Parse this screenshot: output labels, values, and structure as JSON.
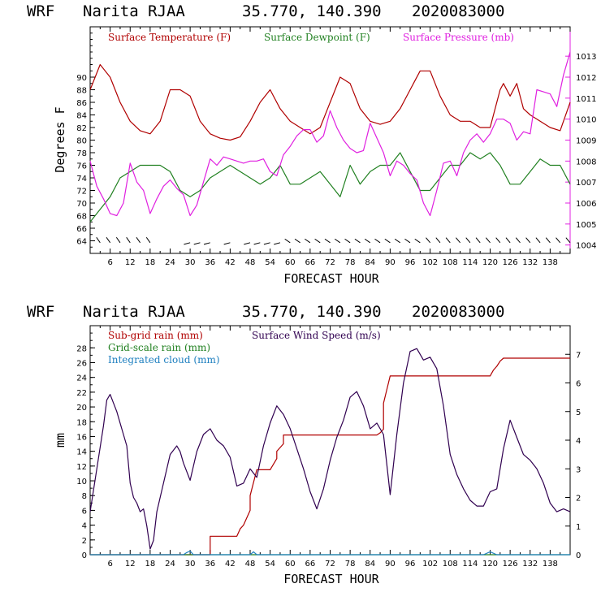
{
  "chart_data": [
    {
      "type": "line",
      "header": {
        "model": "WRF",
        "station": "Narita RJAA",
        "coords": "35.770, 140.390",
        "init": "2020083000"
      },
      "xlabel": "FORECAST HOUR",
      "ylabel": "Degrees F",
      "xlim": [
        0,
        144
      ],
      "ylim": [
        62,
        98
      ],
      "y2lim": [
        1003.6,
        1014.4
      ],
      "x_ticks": [
        "6",
        "12",
        "18",
        "24",
        "30",
        "36",
        "42",
        "48",
        "54",
        "60",
        "66",
        "72",
        "78",
        "84",
        "90",
        "96",
        "102",
        "108",
        "114",
        "120",
        "126",
        "132",
        "138"
      ],
      "y_ticks": [
        "64",
        "66",
        "68",
        "70",
        "72",
        "74",
        "76",
        "78",
        "80",
        "82",
        "84",
        "86",
        "88",
        "90"
      ],
      "y2_ticks": [
        "1004",
        "1005",
        "1006",
        "1007",
        "1008",
        "1009",
        "1010",
        "1011",
        "1012",
        "1013"
      ],
      "series": [
        {
          "name": "Surface Temperature (F)",
          "color": "#b00000",
          "axis": "left",
          "x": [
            0,
            3,
            6,
            9,
            12,
            15,
            18,
            21,
            24,
            27,
            30,
            33,
            36,
            39,
            42,
            45,
            48,
            51,
            54,
            57,
            60,
            63,
            66,
            69,
            72,
            75,
            78,
            81,
            84,
            87,
            90,
            93,
            96,
            99,
            102,
            105,
            108,
            111,
            114,
            117,
            120,
            123,
            124,
            126,
            128,
            130,
            132,
            135,
            138,
            141,
            144
          ],
          "values": [
            88,
            92,
            90,
            86,
            83,
            81.5,
            81,
            83,
            88,
            88,
            87,
            83,
            81,
            80.3,
            80,
            80.5,
            83,
            86,
            88,
            85,
            83,
            82,
            81,
            82,
            86,
            90,
            89,
            85,
            83,
            82.5,
            83,
            85,
            88,
            91,
            91,
            87,
            84,
            83,
            83,
            82,
            82,
            88,
            89,
            87,
            89,
            85,
            84,
            83,
            82,
            81.5,
            86
          ]
        },
        {
          "name": "Surface Dewpoint (F)",
          "color": "#208020",
          "axis": "left",
          "x": [
            0,
            3,
            6,
            9,
            12,
            15,
            18,
            21,
            24,
            27,
            30,
            33,
            36,
            39,
            42,
            45,
            48,
            51,
            54,
            57,
            60,
            63,
            66,
            69,
            72,
            75,
            78,
            81,
            84,
            87,
            90,
            93,
            96,
            99,
            102,
            105,
            108,
            111,
            114,
            117,
            120,
            123,
            126,
            129,
            132,
            135,
            138,
            141,
            144
          ],
          "values": [
            67,
            69,
            71,
            74,
            75,
            76,
            76,
            76,
            75,
            72,
            71,
            72,
            74,
            75,
            76,
            75,
            74,
            73,
            74,
            76,
            73,
            73,
            74,
            75,
            73,
            71,
            76,
            73,
            75,
            76,
            76,
            78,
            75,
            72,
            72,
            74,
            76,
            76,
            78,
            77,
            78,
            76,
            73,
            73,
            75,
            77,
            76,
            76,
            73
          ]
        },
        {
          "name": "Surface Pressure (mb)",
          "color": "#e020e0",
          "axis": "right",
          "x": [
            0,
            2,
            4,
            6,
            8,
            10,
            12,
            14,
            16,
            18,
            20,
            22,
            24,
            26,
            28,
            30,
            32,
            34,
            36,
            38,
            40,
            42,
            44,
            46,
            48,
            50,
            52,
            54,
            56,
            58,
            60,
            62,
            64,
            66,
            68,
            70,
            72,
            74,
            76,
            78,
            80,
            82,
            84,
            86,
            88,
            90,
            92,
            94,
            96,
            98,
            100,
            102,
            104,
            106,
            108,
            110,
            112,
            114,
            116,
            118,
            120,
            122,
            124,
            126,
            128,
            130,
            132,
            134,
            136,
            138,
            140,
            142,
            144
          ],
          "values": [
            1008,
            1006.8,
            1006.2,
            1005.5,
            1005.4,
            1006,
            1007.9,
            1007,
            1006.6,
            1005.5,
            1006.2,
            1006.8,
            1007.1,
            1006.7,
            1006.4,
            1005.4,
            1005.9,
            1007,
            1008.1,
            1007.8,
            1008.2,
            1008.1,
            1008,
            1007.9,
            1008,
            1008,
            1008.1,
            1007.5,
            1007.3,
            1008.3,
            1008.7,
            1009.2,
            1009.5,
            1009.5,
            1008.9,
            1009.2,
            1010.4,
            1009.6,
            1009,
            1008.6,
            1008.4,
            1008.5,
            1009.8,
            1009.1,
            1008.4,
            1007.3,
            1008,
            1007.8,
            1007.4,
            1007.1,
            1006,
            1005.4,
            1006.6,
            1007.9,
            1008,
            1007.3,
            1008.4,
            1009,
            1009.3,
            1008.9,
            1009.3,
            1010,
            1010,
            1009.8,
            1009,
            1009.4,
            1009.3,
            1011.4,
            1011.3,
            1011.2,
            1010.6,
            1012.1,
            1013.2
          ]
        }
      ],
      "wind_barbs_hours": [
        3,
        6,
        9,
        12,
        15,
        18,
        30,
        33,
        36,
        42,
        48,
        51,
        54,
        57,
        60,
        63,
        66,
        69,
        72,
        75,
        78,
        81,
        84,
        87,
        90,
        93,
        96,
        99,
        102,
        105,
        108,
        111,
        114,
        117,
        120,
        123,
        126,
        129,
        132,
        135,
        138,
        141,
        144
      ]
    },
    {
      "type": "line",
      "header": {
        "model": "WRF",
        "station": "Narita RJAA",
        "coords": "35.770, 140.390",
        "init": "2020083000"
      },
      "xlabel": "FORECAST HOUR",
      "ylabel": "mm",
      "xlim": [
        0,
        144
      ],
      "ylim": [
        0,
        31
      ],
      "y2lim": [
        0,
        8
      ],
      "x_ticks": [
        "6",
        "12",
        "18",
        "24",
        "30",
        "36",
        "42",
        "48",
        "54",
        "60",
        "66",
        "72",
        "78",
        "84",
        "90",
        "96",
        "102",
        "108",
        "114",
        "120",
        "126",
        "132",
        "138"
      ],
      "y_ticks": [
        "0",
        "2",
        "4",
        "6",
        "8",
        "10",
        "12",
        "14",
        "16",
        "18",
        "20",
        "22",
        "24",
        "26",
        "28"
      ],
      "y2_ticks": [
        "0",
        "1",
        "2",
        "3",
        "4",
        "5",
        "6",
        "7"
      ],
      "series": [
        {
          "name": "Sub-grid rain (mm)",
          "color": "#b00000",
          "axis": "left",
          "x": [
            0,
            36,
            36,
            44,
            45,
            46,
            47,
            48,
            48,
            50,
            54,
            56,
            56,
            58,
            58,
            86,
            87,
            88,
            88,
            90,
            120,
            121,
            122,
            123,
            124,
            130,
            144
          ],
          "values": [
            0,
            0,
            2.5,
            2.5,
            3.5,
            4,
            5,
            6,
            8,
            11.5,
            11.5,
            13,
            14,
            15,
            16.2,
            16.2,
            16.5,
            17,
            20.5,
            24.2,
            24.2,
            25,
            25.5,
            26.2,
            26.6,
            26.6,
            26.6
          ]
        },
        {
          "name": "Grid-scale rain (mm)",
          "color": "#208020",
          "axis": "left",
          "x": [
            0,
            144
          ],
          "values": [
            0,
            0
          ]
        },
        {
          "name": "Integrated cloud (mm)",
          "color": "#2080c0",
          "axis": "left",
          "x": [
            0,
            28,
            29,
            30,
            31,
            48,
            49,
            50,
            118,
            120,
            122,
            144
          ],
          "values": [
            0,
            0,
            0.3,
            0.5,
            0,
            0,
            0.4,
            0,
            0,
            0.4,
            0,
            0
          ]
        },
        {
          "name": "Surface Wind Speed (m/s)",
          "color": "#300050",
          "axis": "right",
          "x": [
            0,
            2,
            4,
            5,
            6,
            7,
            8,
            9,
            10,
            11,
            12,
            13,
            14,
            15,
            16,
            17,
            18,
            19,
            20,
            22,
            24,
            26,
            27,
            28,
            30,
            32,
            34,
            36,
            38,
            40,
            42,
            44,
            46,
            48,
            50,
            52,
            54,
            56,
            58,
            60,
            62,
            64,
            66,
            68,
            70,
            72,
            74,
            76,
            78,
            80,
            82,
            84,
            86,
            88,
            90,
            92,
            94,
            96,
            98,
            100,
            102,
            104,
            106,
            108,
            110,
            112,
            114,
            116,
            118,
            120,
            122,
            124,
            126,
            128,
            130,
            132,
            134,
            136,
            138,
            140,
            142,
            144
          ],
          "values": [
            1.5,
            3,
            4.5,
            5.4,
            5.6,
            5.3,
            5,
            4.6,
            4.2,
            3.8,
            2.5,
            2,
            1.8,
            1.5,
            1.6,
            1,
            0.2,
            0.5,
            1.5,
            2.5,
            3.5,
            3.8,
            3.6,
            3.2,
            2.6,
            3.6,
            4.2,
            4.4,
            4,
            3.8,
            3.4,
            2.4,
            2.5,
            3,
            2.7,
            3.8,
            4.6,
            5.2,
            4.9,
            4.4,
            3.7,
            3,
            2.2,
            1.6,
            2.3,
            3.3,
            4.1,
            4.7,
            5.5,
            5.7,
            5.2,
            4.4,
            4.6,
            4.2,
            2.1,
            4.2,
            6,
            7.1,
            7.2,
            6.8,
            6.9,
            6.5,
            5.2,
            3.5,
            2.8,
            2.3,
            1.9,
            1.7,
            1.7,
            2.2,
            2.3,
            3.7,
            4.7,
            4.1,
            3.5,
            3.3,
            3,
            2.5,
            1.8,
            1.5,
            1.6,
            1.5
          ]
        }
      ]
    }
  ]
}
